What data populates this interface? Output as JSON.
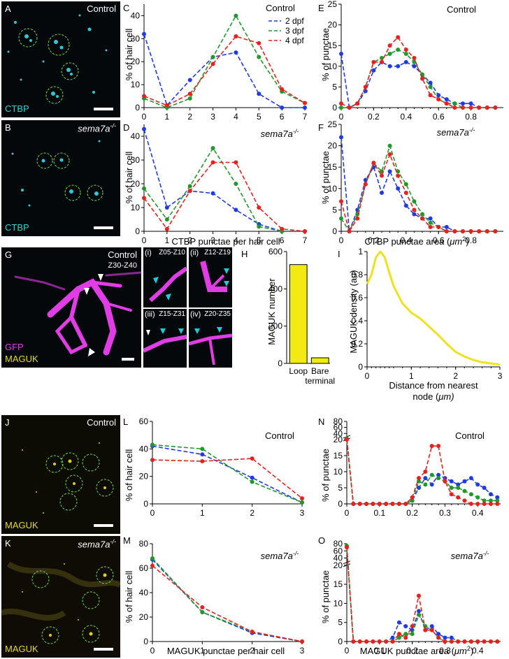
{
  "panels": {
    "A": {
      "letter": "A",
      "condition": "Control",
      "stain": "CTBP"
    },
    "B": {
      "letter": "B",
      "condition": "sema7a",
      "cond_sup": "-/-",
      "stain": "CTBP"
    },
    "G": {
      "letter": "G",
      "condition": "Control",
      "range": "Z30-Z40",
      "stain1": "GFP",
      "stain2": "MAGUK",
      "insets": [
        {
          "label": "(i)",
          "range": "Z05-Z10"
        },
        {
          "label": "(ii)",
          "range": "Z12-Z19"
        },
        {
          "label": "(iii)",
          "range": "Z15-Z31"
        },
        {
          "label": "(iv)",
          "range": "Z20-Z35"
        }
      ]
    },
    "J": {
      "letter": "J",
      "condition": "Control",
      "stain": "MAGUK"
    },
    "K": {
      "letter": "K",
      "condition": "sema7a",
      "cond_sup": "-/-",
      "stain": "MAGUK"
    }
  },
  "legend": {
    "title": "Control",
    "entries": [
      "2 dpf",
      "3 dpf",
      "4 dpf"
    ]
  },
  "colors": {
    "d2": "#1f3be6",
    "d3": "#1f9a2a",
    "d4": "#e8211d",
    "bar": "#f2ea12",
    "density": "#f0e21a"
  },
  "labels": {
    "pct_hair": "% of hair cell",
    "pct_punctae": "% of punctae",
    "ctbp_per_cell": "CTBP punctae per hair cell",
    "ctbp_area": "CTBP punctae area (",
    "maguk_per_cell": "MAGUK punctae per hair cell",
    "maguk_area": "MAGUK punctae area (",
    "um": "μm",
    "maguk_number": "MAGUK number",
    "maguk_density": "MAGUK density (au)",
    "dist_line1": "Distance from nearest",
    "dist_line2": "node (",
    "dist_unit": "μm)"
  },
  "chart_data": [
    {
      "id": "C",
      "type": "line",
      "title": "",
      "xlabel": "",
      "ylabel": "% of hair cell",
      "x": [
        0,
        1,
        2,
        3,
        4,
        5,
        6,
        7
      ],
      "xlim": [
        0,
        7
      ],
      "ylim": [
        0,
        45
      ],
      "yticks": [
        0,
        10,
        20,
        30,
        40
      ],
      "series": [
        {
          "name": "2 dpf",
          "values": [
            32,
            1,
            12,
            22,
            24,
            6,
            0,
            0
          ]
        },
        {
          "name": "3 dpf",
          "values": [
            4,
            0,
            4,
            22,
            40,
            22,
            7,
            2
          ]
        },
        {
          "name": "4 dpf",
          "values": [
            5,
            1,
            6,
            19,
            31,
            28,
            8,
            2
          ]
        }
      ]
    },
    {
      "id": "D",
      "type": "line",
      "title": "sema7a-/-",
      "xlabel": "CTBP punctae per hair cell",
      "ylabel": "% of hair cell",
      "x": [
        0,
        1,
        2,
        3,
        4,
        5,
        6,
        7
      ],
      "xlim": [
        0,
        7
      ],
      "ylim": [
        0,
        45
      ],
      "yticks": [
        0,
        10,
        20,
        30,
        40
      ],
      "series": [
        {
          "name": "2 dpf",
          "values": [
            43,
            10,
            17,
            16,
            9,
            3,
            0,
            0
          ]
        },
        {
          "name": "3 dpf",
          "values": [
            18,
            5,
            19,
            35,
            20,
            2,
            0,
            0
          ]
        },
        {
          "name": "4 dpf",
          "values": [
            14,
            1,
            17,
            29,
            29,
            10,
            1,
            0
          ]
        }
      ]
    },
    {
      "id": "E",
      "type": "line",
      "title": "Control",
      "xlabel": "",
      "ylabel": "% of punctae",
      "x": [
        0,
        0.05,
        0.1,
        0.15,
        0.2,
        0.25,
        0.3,
        0.35,
        0.4,
        0.45,
        0.5,
        0.55,
        0.6,
        0.65,
        0.7,
        0.75,
        0.8,
        0.85,
        0.9,
        0.95
      ],
      "xlim": [
        0,
        1.0
      ],
      "ylim": [
        0,
        25
      ],
      "xticks": [
        0,
        0.2,
        0.4,
        0.6,
        0.8
      ],
      "yticks": [
        0,
        5,
        10,
        15,
        20,
        25
      ],
      "series": [
        {
          "name": "2 dpf",
          "values": [
            13,
            0,
            1,
            4,
            9,
            11,
            10,
            10,
            11,
            10,
            8,
            6,
            3,
            2,
            1,
            1,
            1,
            0,
            0,
            0
          ]
        },
        {
          "name": "3 dpf",
          "values": [
            0,
            0,
            1,
            5,
            11,
            12,
            13,
            14,
            13,
            11,
            8,
            5,
            2,
            1,
            1,
            0,
            0,
            0,
            0,
            0
          ]
        },
        {
          "name": "4 dpf",
          "values": [
            1,
            0,
            1,
            5,
            11,
            11,
            15,
            17,
            14,
            12,
            7,
            3,
            2,
            1,
            0,
            0,
            0,
            0,
            0,
            0
          ]
        }
      ]
    },
    {
      "id": "F",
      "type": "line",
      "title": "sema7a-/-",
      "xlabel": "CTBP punctae area (μm²)",
      "ylabel": "% of punctae",
      "x": [
        0,
        0.05,
        0.1,
        0.15,
        0.2,
        0.25,
        0.3,
        0.35,
        0.4,
        0.45,
        0.5,
        0.55,
        0.6,
        0.65,
        0.7,
        0.75,
        0.8,
        0.85,
        0.9,
        0.95
      ],
      "xlim": [
        0,
        1.0
      ],
      "ylim": [
        0,
        25
      ],
      "xticks": [
        0,
        0.2,
        0.4,
        0.6,
        0.8
      ],
      "yticks": [
        0,
        5,
        10,
        15,
        20,
        25
      ],
      "series": [
        {
          "name": "2 dpf",
          "values": [
            22,
            0,
            5,
            12,
            15,
            9,
            14,
            10,
            6,
            4,
            3,
            3,
            1,
            1,
            0,
            0,
            0,
            0,
            0,
            0
          ]
        },
        {
          "name": "3 dpf",
          "values": [
            3,
            0,
            4,
            11,
            16,
            14,
            20,
            14,
            11,
            7,
            4,
            2,
            1,
            0,
            0,
            0,
            0,
            0,
            0,
            0
          ]
        },
        {
          "name": "4 dpf",
          "values": [
            7,
            0,
            3,
            11,
            16,
            13,
            18,
            13,
            9,
            5,
            3,
            1,
            1,
            0,
            0,
            0,
            0,
            0,
            0,
            0
          ]
        }
      ]
    },
    {
      "id": "H",
      "type": "bar",
      "title": "",
      "ylabel": "MAGUK number",
      "categories": [
        "Loop",
        "Bare terminal"
      ],
      "values": [
        530,
        30
      ],
      "ylim": [
        0,
        600
      ],
      "yticks": [
        0,
        200,
        400,
        600
      ]
    },
    {
      "id": "I",
      "type": "line",
      "title": "",
      "ylabel": "MAGUK density (au)",
      "xlabel": "Distance from nearest node (μm)",
      "x": [
        0,
        0.1,
        0.2,
        0.3,
        0.4,
        0.5,
        0.6,
        0.8,
        1.0,
        1.2,
        1.4,
        1.6,
        1.8,
        2.0,
        2.2,
        2.4,
        2.6,
        2.8,
        3.0
      ],
      "xlim": [
        0,
        3
      ],
      "ylim": [
        0,
        1
      ],
      "xticks": [
        0,
        1,
        2,
        3
      ],
      "yticks": [
        0,
        0.2,
        0.4,
        0.6,
        0.8,
        1
      ],
      "series": [
        {
          "name": "",
          "values": [
            0.72,
            0.8,
            0.95,
            1.0,
            0.95,
            0.82,
            0.7,
            0.55,
            0.47,
            0.42,
            0.35,
            0.28,
            0.2,
            0.13,
            0.09,
            0.06,
            0.04,
            0.03,
            0.02
          ]
        }
      ]
    },
    {
      "id": "L",
      "type": "line",
      "title": "Control",
      "xlabel": "",
      "ylabel": "% of hair cell",
      "x": [
        0,
        1,
        2,
        3
      ],
      "xlim": [
        0,
        3
      ],
      "ylim": [
        0,
        60
      ],
      "yticks": [
        0,
        20,
        40,
        60
      ],
      "series": [
        {
          "name": "2 dpf",
          "values": [
            42,
            36,
            19,
            1
          ]
        },
        {
          "name": "3 dpf",
          "values": [
            43,
            40,
            16,
            1
          ]
        },
        {
          "name": "4 dpf",
          "values": [
            32,
            31,
            33,
            4
          ]
        }
      ]
    },
    {
      "id": "M",
      "type": "line",
      "title": "sema7a-/-",
      "xlabel": "MAGUK punctae per hair cell",
      "ylabel": "% of hair cell",
      "x": [
        0,
        1,
        2,
        3
      ],
      "xlim": [
        0,
        3
      ],
      "ylim": [
        0,
        80
      ],
      "yticks": [
        0,
        20,
        40,
        60,
        80
      ],
      "series": [
        {
          "name": "2 dpf",
          "values": [
            67,
            24,
            7,
            0
          ]
        },
        {
          "name": "3 dpf",
          "values": [
            68,
            24,
            8,
            0
          ]
        },
        {
          "name": "4 dpf",
          "values": [
            62,
            28,
            8,
            0
          ]
        }
      ]
    },
    {
      "id": "N",
      "type": "line",
      "title": "Control",
      "xlabel": "",
      "ylabel": "% of punctae",
      "x": [
        0,
        0.02,
        0.04,
        0.06,
        0.08,
        0.1,
        0.12,
        0.14,
        0.16,
        0.18,
        0.2,
        0.22,
        0.24,
        0.26,
        0.28,
        0.3,
        0.32,
        0.34,
        0.36,
        0.38,
        0.4,
        0.42,
        0.44,
        0.46
      ],
      "xlim": [
        0,
        0.47
      ],
      "ylim": [
        0,
        80
      ],
      "xticks": [
        0,
        0.1,
        0.2,
        0.3,
        0.4
      ],
      "yticks": [
        0,
        5,
        10,
        15,
        20,
        40,
        60,
        80
      ],
      "broken_axis": true,
      "series": [
        {
          "name": "2 dpf",
          "values": [
            22,
            0,
            0,
            0,
            0,
            0,
            0,
            0,
            0,
            0,
            1,
            5,
            8,
            6,
            9,
            8,
            7,
            6,
            7,
            8,
            6,
            5,
            3,
            2
          ]
        },
        {
          "name": "3 dpf",
          "values": [
            23,
            0,
            0,
            0,
            0,
            0,
            0,
            0,
            0,
            0,
            1,
            7,
            6,
            9,
            8,
            7,
            5,
            5,
            4,
            3,
            2,
            1,
            1,
            1
          ]
        },
        {
          "name": "4 dpf",
          "values": [
            20,
            0,
            0,
            0,
            0,
            0,
            0,
            0,
            0,
            0,
            2,
            8,
            10,
            18,
            18,
            7,
            3,
            2,
            1,
            0,
            0,
            0,
            0,
            0
          ]
        }
      ]
    },
    {
      "id": "O",
      "type": "line",
      "title": "sema7a-/-",
      "xlabel": "MAGUK punctae area (μm²)",
      "ylabel": "% of punctae",
      "x": [
        0,
        0.02,
        0.04,
        0.06,
        0.08,
        0.1,
        0.12,
        0.14,
        0.16,
        0.18,
        0.2,
        0.22,
        0.24,
        0.26,
        0.28,
        0.3,
        0.32,
        0.34,
        0.36,
        0.38,
        0.4,
        0.42,
        0.44,
        0.46
      ],
      "xlim": [
        0,
        0.47
      ],
      "ylim": [
        0,
        80
      ],
      "xticks": [
        0,
        0.1,
        0.2,
        0.3,
        0.4
      ],
      "yticks": [
        0,
        5,
        10,
        15,
        20,
        40,
        60,
        80
      ],
      "broken_axis": true,
      "series": [
        {
          "name": "2 dpf",
          "values": [
            72,
            0,
            0,
            0,
            0,
            0,
            0,
            1,
            5,
            4,
            3,
            8,
            3,
            4,
            2,
            1,
            1,
            0,
            0,
            0,
            0,
            0,
            0,
            0
          ]
        },
        {
          "name": "3 dpf",
          "values": [
            74,
            0,
            0,
            0,
            0,
            0,
            0,
            0,
            1,
            2,
            2,
            7,
            4,
            3,
            1,
            0,
            0,
            0,
            0,
            0,
            0,
            0,
            0,
            0
          ]
        },
        {
          "name": "4 dpf",
          "values": [
            70,
            0,
            0,
            0,
            0,
            0,
            0,
            0,
            2,
            1,
            4,
            12,
            3,
            3,
            1,
            0,
            0,
            0,
            0,
            0,
            0,
            0,
            0,
            0
          ]
        }
      ]
    }
  ]
}
